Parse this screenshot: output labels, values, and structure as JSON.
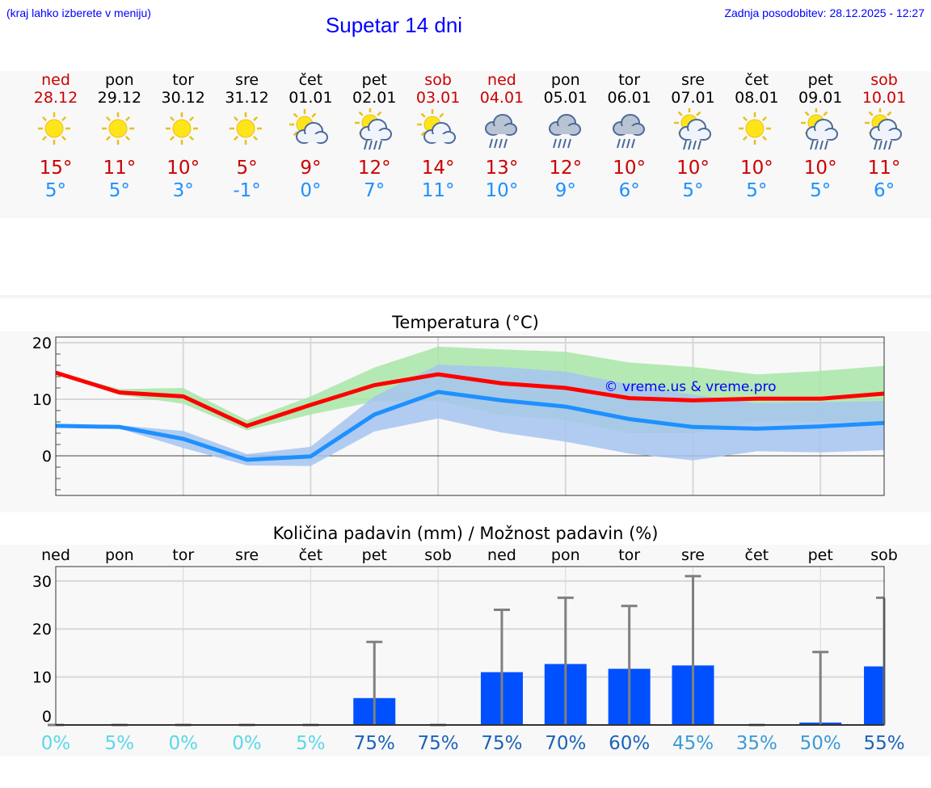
{
  "header": {
    "hint": "(kraj lahko izberete v meniju)",
    "title": "Supetar 14 dni",
    "updated": "Zadnja posodobitev: 28.12.2025 - 12:27"
  },
  "days": [
    {
      "name": "ned",
      "date": "28.12",
      "icon": "sun",
      "max": "15°",
      "min": "5°",
      "weekend": true
    },
    {
      "name": "pon",
      "date": "29.12",
      "icon": "sun",
      "max": "11°",
      "min": "5°",
      "weekend": false
    },
    {
      "name": "tor",
      "date": "30.12",
      "icon": "sun",
      "max": "10°",
      "min": "3°",
      "weekend": false
    },
    {
      "name": "sre",
      "date": "31.12",
      "icon": "sun",
      "max": "5°",
      "min": "-1°",
      "weekend": false
    },
    {
      "name": "čet",
      "date": "01.01",
      "icon": "sun-cloud",
      "max": "9°",
      "min": "0°",
      "weekend": false
    },
    {
      "name": "pet",
      "date": "02.01",
      "icon": "sun-cloud-rain",
      "max": "12°",
      "min": "7°",
      "weekend": false
    },
    {
      "name": "sob",
      "date": "03.01",
      "icon": "sun-cloud",
      "max": "14°",
      "min": "11°",
      "weekend": true
    },
    {
      "name": "ned",
      "date": "04.01",
      "icon": "cloud-rain",
      "max": "13°",
      "min": "10°",
      "weekend": true
    },
    {
      "name": "pon",
      "date": "05.01",
      "icon": "cloud-rain",
      "max": "12°",
      "min": "9°",
      "weekend": false
    },
    {
      "name": "tor",
      "date": "06.01",
      "icon": "cloud-rain",
      "max": "10°",
      "min": "6°",
      "weekend": false
    },
    {
      "name": "sre",
      "date": "07.01",
      "icon": "sun-cloud-rain",
      "max": "10°",
      "min": "5°",
      "weekend": false
    },
    {
      "name": "čet",
      "date": "08.01",
      "icon": "sun",
      "max": "10°",
      "min": "5°",
      "weekend": false
    },
    {
      "name": "pet",
      "date": "09.01",
      "icon": "sun-cloud-rain",
      "max": "10°",
      "min": "5°",
      "weekend": false
    },
    {
      "name": "sob",
      "date": "10.01",
      "icon": "sun-cloud-rain",
      "max": "11°",
      "min": "6°",
      "weekend": true
    }
  ],
  "chart_data": [
    {
      "type": "line",
      "title": "Temperatura (°C)",
      "ylim": [
        -7,
        21
      ],
      "yticks": [
        "20",
        "10",
        "0"
      ],
      "watermark": "© vreme.us & vreme.pro",
      "series": [
        {
          "name": "max",
          "color": "#ff0000",
          "values": [
            14.7,
            11.2,
            10.5,
            5.3,
            9,
            12.5,
            14.4,
            12.8,
            12,
            10.2,
            9.8,
            10.1,
            10.1,
            11
          ],
          "band_low": [
            14.7,
            10.8,
            9.2,
            4.5,
            7.3,
            9.6,
            9.7,
            7.2,
            6.3,
            4.0,
            4.0,
            6.0,
            6.0,
            6.0
          ],
          "band_high": [
            14.9,
            11.8,
            12.0,
            6.3,
            10.5,
            15.6,
            19.3,
            18.8,
            18.4,
            16.5,
            15.7,
            14.4,
            15.0,
            15.9
          ],
          "band_color": "#a8e6a8"
        },
        {
          "name": "min",
          "color": "#1e90ff",
          "values": [
            5.3,
            5.1,
            3,
            -0.7,
            -0.1,
            7.3,
            11.3,
            9.8,
            8.7,
            6.5,
            5.1,
            4.8,
            5.2,
            5.8
          ],
          "band_low": [
            5.0,
            4.8,
            1.4,
            -1.7,
            -1.8,
            4.3,
            6.6,
            4.1,
            2.5,
            0.4,
            -0.8,
            0.8,
            0.6,
            1.0
          ],
          "band_high": [
            5.6,
            5.4,
            4.4,
            0.3,
            1.6,
            10.5,
            16.1,
            15.7,
            14.9,
            12.6,
            10.8,
            9.3,
            9.5,
            9.7
          ],
          "band_color": "#a6c4f0"
        }
      ]
    },
    {
      "type": "bar",
      "title": "Količina padavin (mm) / Možnost padavin (%)",
      "ylim": [
        0,
        33
      ],
      "yticks": [
        "30",
        "20",
        "10",
        "0"
      ],
      "categories": [
        "ned",
        "pon",
        "tor",
        "sre",
        "čet",
        "pet",
        "sob",
        "ned",
        "pon",
        "tor",
        "sre",
        "čet",
        "pet",
        "sob"
      ],
      "values": [
        0,
        0,
        0,
        0,
        0,
        5.6,
        0,
        11,
        12.7,
        11.7,
        12.4,
        0,
        0.5,
        12.2
      ],
      "whisker_max": [
        0,
        0,
        0,
        0,
        0,
        17.3,
        0,
        24,
        26.5,
        24.8,
        31,
        0,
        15.2,
        26.5
      ],
      "chance": [
        "0%",
        "5%",
        "0%",
        "0%",
        "5%",
        "75%",
        "75%",
        "75%",
        "70%",
        "60%",
        "45%",
        "35%",
        "50%",
        "55%"
      ],
      "chance_colors": [
        "#5ad8e8",
        "#5ad8e8",
        "#5ad8e8",
        "#5ad8e8",
        "#5ad8e8",
        "#1a63b8",
        "#1a63b8",
        "#1a63b8",
        "#1a63b8",
        "#1a63b8",
        "#3a9ad8",
        "#3a9ad8",
        "#3a9ad8",
        "#1a63b8"
      ],
      "bar_color": "#0050ff"
    }
  ]
}
